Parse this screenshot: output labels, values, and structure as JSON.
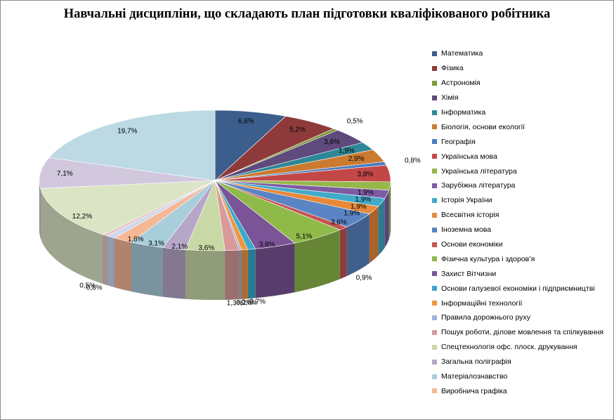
{
  "chart_data": {
    "type": "pie",
    "title": "Навчальні дисципліни, що складають план підготовки кваліфікованого робітника",
    "legend_position": "right",
    "categories": [
      "Математика",
      "Фізика",
      "Астрономія",
      "Хімія",
      "Інформатика",
      "Біологія, основи екології",
      "Географія",
      "Українська мова",
      "Українська література",
      "Зарубіжна література",
      "Історія України",
      "Всесвітня історія",
      "Іноземна мова",
      "Основи економіки",
      "Фізична культура і здоров’я",
      "Захист Вітчизни",
      "Основи галузевої економіки і підприємництві",
      "Інформаційні технології",
      "Правила дорожнього руху",
      "Пошук роботи, ділове мовлення та спілкування",
      "Спецтехнологія офс. плоск. друкування",
      "Загальна поліграфія",
      "Матеріалознавство",
      "Виробнича графіка"
    ],
    "values": [
      6.6,
      5.2,
      0.5,
      3.6,
      1.9,
      2.9,
      0.8,
      3.8,
      1.9,
      1.9,
      1.9,
      1.9,
      3.6,
      0.9,
      5.1,
      3.8,
      0.7,
      0.6,
      0.2,
      1.3,
      3.6,
      2.1,
      3.1,
      1.8
    ],
    "data_labels": [
      "6,6%",
      "5,2%",
      "0,5%",
      "3,6%",
      "1,9%",
      "2,9%",
      "0,8%",
      "3,8%",
      "1,9%",
      "1,9%",
      "1,9%",
      "1,9%",
      "3,6%",
      "0,9%",
      "5,1%",
      "3,8%",
      "0,7%",
      "0,6%",
      "0,2%",
      "1,3%",
      "3,6%",
      "2,1%",
      "3,1%",
      "1,8%"
    ],
    "extra_slices": [
      {
        "value": 0.8,
        "label": "0,8%"
      },
      {
        "value": 0.5,
        "label": "0,5%"
      },
      {
        "value": 12.2,
        "label": "12,2%"
      },
      {
        "value": 7.1,
        "label": "7,1%"
      },
      {
        "value": 19.7,
        "label": "19,7%"
      }
    ],
    "colors": [
      "#3b5e8c",
      "#8e3a3a",
      "#7d9a3a",
      "#5e4a7c",
      "#2e8796",
      "#cc7a30",
      "#4d7cc0",
      "#c24848",
      "#94b84a",
      "#7e5ca4",
      "#40aac8",
      "#e8893a",
      "#5a84c4",
      "#c65353",
      "#8fba4a",
      "#7a5496",
      "#3ba8cc",
      "#f0963e",
      "#9db3dc",
      "#d99a9a",
      "#c9d9a6",
      "#b6a6c8",
      "#a8cedb",
      "#f5b896"
    ],
    "extra_colors": [
      "#cbd8ee",
      "#e7c4c4",
      "#dbe5c6",
      "#d2c8de",
      "#bcd9e4"
    ]
  }
}
